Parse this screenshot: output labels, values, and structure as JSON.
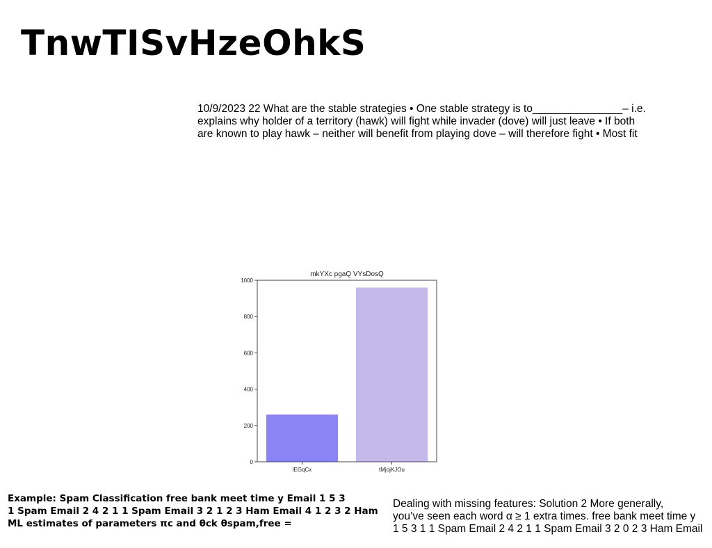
{
  "title": "TnwTISvHzeOhkS",
  "top_paragraph": [
    "10/9/2023 22 What are the stable strategies • One stable strategy is to_______________– i.e.",
    "explains why holder of a territory (hawk) will fight while invader (dove) will just leave • If both",
    "are known to play hawk – neither will benefit from playing dove – will therefore fight • Most fit"
  ],
  "bottom_left_paragraph": [
    "Example: Spam Classification free bank meet time y Email 1 5 3",
    "1 Spam Email 2 4 2 1 1 Spam Email 3 2 1 2 3 Ham Email 4 1 2 3 2 Ham",
    "ML estimates of parameters πc and θck θspam,free ="
  ],
  "bottom_right_paragraph": [
    "Dealing with missing features: Solution 2 More generally,",
    "you’ve seen each word α ≥ 1 extra times. free bank meet time y",
    "1 5 3 1 1 Spam Email 2 4 2 1 1 Spam Email 3 2 0 2 3 Ham Email"
  ],
  "chart_data": {
    "type": "bar",
    "title": "mkYXc pgaQ VYsDosQ",
    "categories": [
      "lEGqCx",
      "tMjojKJOu"
    ],
    "values": [
      260,
      960
    ],
    "colors": [
      "#8a84f4",
      "#c3baea"
    ],
    "ylim": [
      0,
      1000
    ],
    "yticks": [
      0,
      200,
      400,
      600,
      800,
      1000
    ],
    "grid": false,
    "xlabel": "",
    "ylabel": ""
  }
}
